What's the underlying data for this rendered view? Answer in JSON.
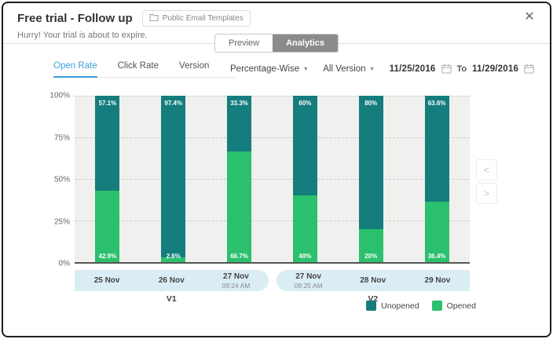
{
  "header": {
    "title": "Free trial - Follow up",
    "badge_label": "Public Email Templates",
    "subtitle": "Hurry! Your trial is about to expire.",
    "close_glyph": "✕"
  },
  "tabs": {
    "preview": "Preview",
    "analytics": "Analytics"
  },
  "subtabs": {
    "open_rate": "Open Rate",
    "click_rate": "Click Rate",
    "version": "Version"
  },
  "filters": {
    "metric": "Percentage-Wise",
    "version": "All Version",
    "date_from": "11/25/2016",
    "to_label": "To",
    "date_to": "11/29/2016",
    "caret_glyph": "▾"
  },
  "nav": {
    "prev_glyph": "<",
    "next_glyph": ">"
  },
  "chart_data": {
    "type": "bar",
    "stacked": true,
    "unit": "percent",
    "ylim": [
      0,
      100
    ],
    "yticks": [
      100,
      75,
      50,
      25,
      0
    ],
    "grid": "dashed-horizontal",
    "legend_position": "bottom-right",
    "categories": [
      {
        "label": "25 Nov",
        "sublabel": ""
      },
      {
        "label": "26 Nov",
        "sublabel": ""
      },
      {
        "label": "27 Nov",
        "sublabel": "09:24 AM"
      },
      {
        "label": "27 Nov",
        "sublabel": "09:25 AM"
      },
      {
        "label": "28 Nov",
        "sublabel": ""
      },
      {
        "label": "29 Nov",
        "sublabel": ""
      }
    ],
    "series": [
      {
        "name": "Unopened",
        "color": "#157d7d",
        "values": [
          57.1,
          97.4,
          33.3,
          60,
          80,
          63.6
        ]
      },
      {
        "name": "Opened",
        "color": "#2bc06d",
        "values": [
          42.9,
          2.6,
          66.7,
          40,
          20,
          36.4
        ]
      }
    ],
    "groups": [
      {
        "label": "V1",
        "from": 0,
        "to": 2
      },
      {
        "label": "V2",
        "from": 3,
        "to": 5
      }
    ]
  },
  "colors": {
    "unopened": "#157d7d",
    "opened": "#2bc06d",
    "active_subtab": "#3b9ed8",
    "axis_strip": "#daedf4",
    "plot_background": "#f0f0ee",
    "active_tab_bg": "#8b8b8b"
  }
}
